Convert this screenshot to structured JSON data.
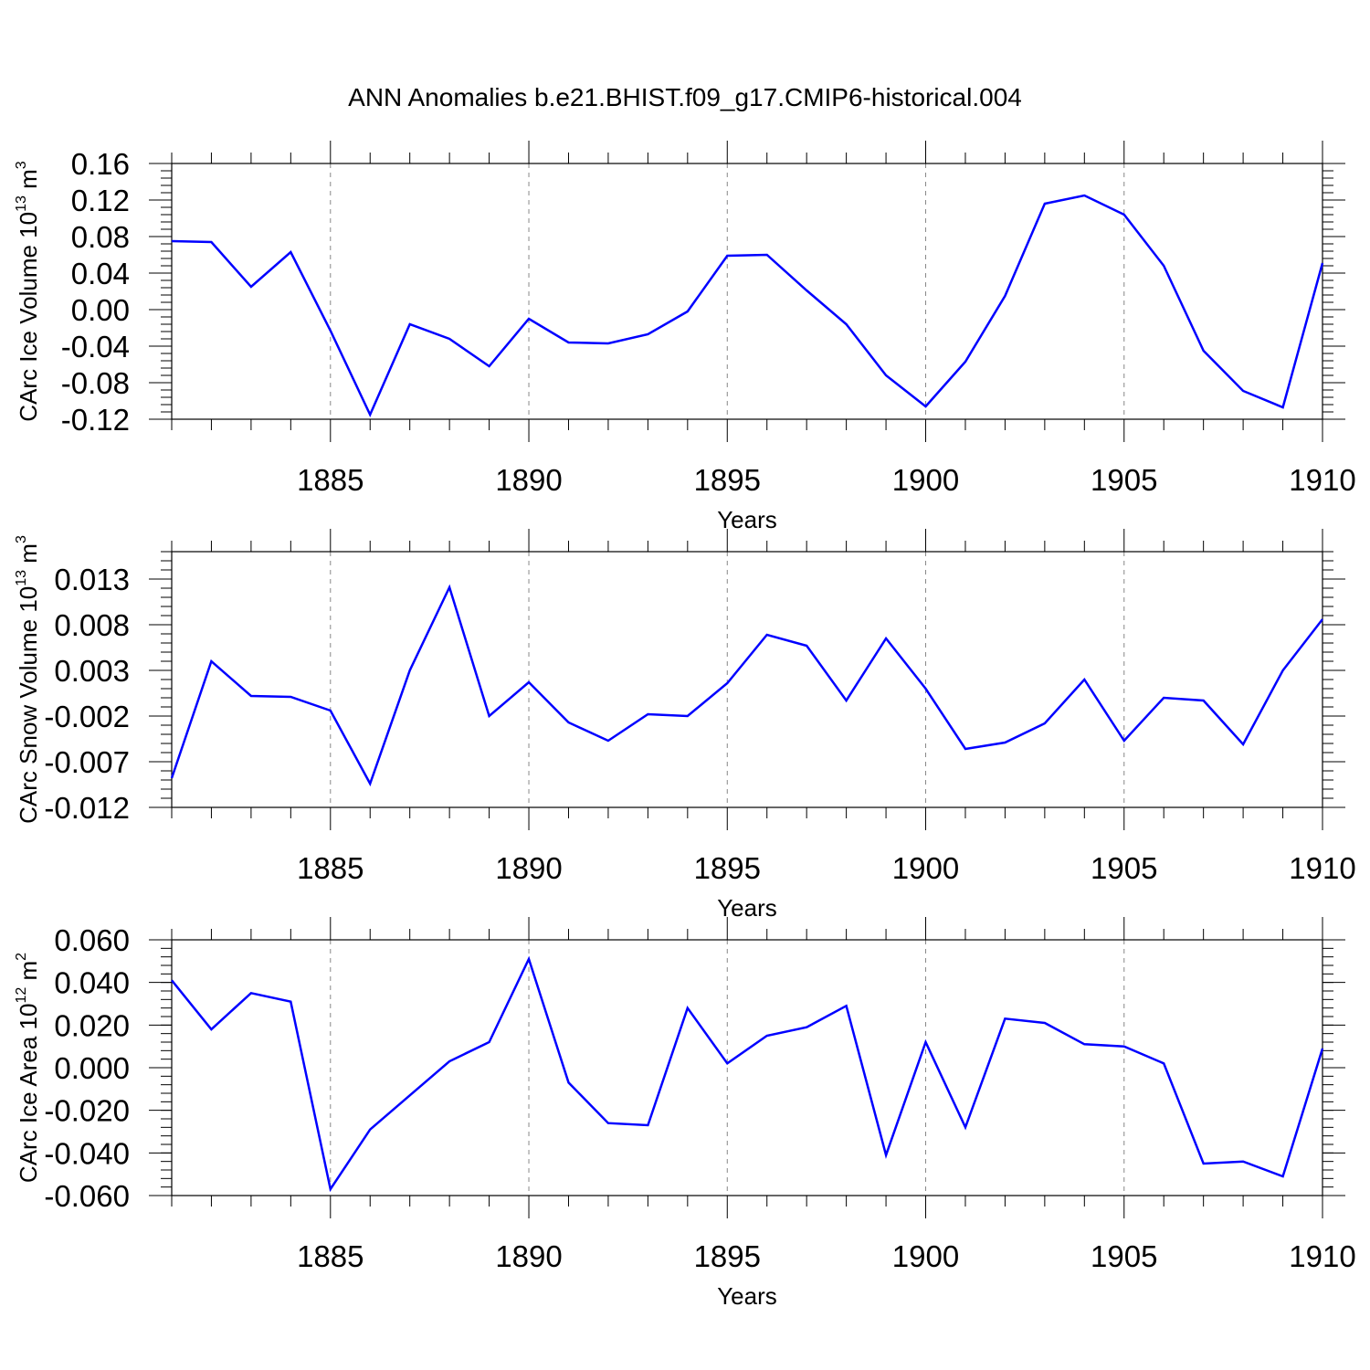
{
  "title": "ANN Anomalies b.e21.BHIST.f09_g17.CMIP6-historical.004",
  "line_color": "#0000ff",
  "chart_data": [
    {
      "type": "line",
      "ylabel": {
        "main": "CArc Ice Volume 10",
        "exp": "13",
        "unit": " m",
        "unit_exp": "3"
      },
      "xlabel": "Years",
      "xlim": [
        1881,
        1910
      ],
      "ylim": [
        -0.12,
        0.16
      ],
      "ytick_step": 0.04,
      "ytick_decimals": 2,
      "xticks": [
        1885,
        1890,
        1895,
        1900,
        1905,
        1910
      ],
      "grid": "vertical dashed at major x ticks",
      "series": [
        {
          "x": [
            1881,
            1882,
            1883,
            1884,
            1885,
            1886,
            1887,
            1888,
            1889,
            1890,
            1891,
            1892,
            1893,
            1894,
            1895,
            1896,
            1897,
            1898,
            1899,
            1900,
            1901,
            1902,
            1903,
            1904,
            1905,
            1906,
            1907,
            1908,
            1909,
            1910
          ],
          "values": [
            0.075,
            0.074,
            0.025,
            0.063,
            -0.023,
            -0.115,
            -0.016,
            -0.032,
            -0.062,
            -0.01,
            -0.036,
            -0.037,
            -0.027,
            -0.002,
            0.059,
            0.06,
            0.021,
            -0.016,
            -0.072,
            -0.106,
            -0.057,
            0.015,
            0.116,
            0.125,
            0.104,
            0.048,
            -0.045,
            -0.089,
            -0.107,
            0.051
          ]
        }
      ]
    },
    {
      "type": "line",
      "ylabel": {
        "main": "CArc Snow Volume 10",
        "exp": "13",
        "unit": " m",
        "unit_exp": "3"
      },
      "xlabel": "Years",
      "xlim": [
        1881,
        1910
      ],
      "ylim": [
        -0.012,
        0.016
      ],
      "ytick_step": 0.005,
      "ytick_decimals": 3,
      "xticks": [
        1885,
        1890,
        1895,
        1900,
        1905,
        1910
      ],
      "grid": "vertical dashed at major x ticks",
      "series": [
        {
          "x": [
            1881,
            1882,
            1883,
            1884,
            1885,
            1886,
            1887,
            1888,
            1889,
            1890,
            1891,
            1892,
            1893,
            1894,
            1895,
            1896,
            1897,
            1898,
            1899,
            1900,
            1901,
            1902,
            1903,
            1904,
            1905,
            1906,
            1907,
            1908,
            1909,
            1910
          ],
          "values": [
            -0.0088,
            0.004,
            0.0002,
            0.0001,
            -0.0014,
            -0.0094,
            0.003,
            0.0121,
            -0.002,
            0.0017,
            -0.0027,
            -0.0047,
            -0.0018,
            -0.002,
            0.0016,
            0.0069,
            0.0057,
            -0.0003,
            0.0065,
            0.001,
            -0.0056,
            -0.0049,
            -0.0028,
            0.002,
            -0.0047,
            0.0,
            -0.0003,
            -0.0051,
            0.003,
            0.0086
          ]
        }
      ]
    },
    {
      "type": "line",
      "ylabel": {
        "main": "CArc Ice Area 10",
        "exp": "12",
        "unit": " m",
        "unit_exp": "2"
      },
      "xlabel": "Years",
      "xlim": [
        1881,
        1910
      ],
      "ylim": [
        -0.06,
        0.06
      ],
      "ytick_step": 0.02,
      "ytick_decimals": 3,
      "xticks": [
        1885,
        1890,
        1895,
        1900,
        1905,
        1910
      ],
      "grid": "vertical dashed at major x ticks",
      "series": [
        {
          "x": [
            1881,
            1882,
            1883,
            1884,
            1885,
            1886,
            1887,
            1888,
            1889,
            1890,
            1891,
            1892,
            1893,
            1894,
            1895,
            1896,
            1897,
            1898,
            1899,
            1900,
            1901,
            1902,
            1903,
            1904,
            1905,
            1906,
            1907,
            1908,
            1909,
            1910
          ],
          "values": [
            0.041,
            0.018,
            0.035,
            0.031,
            -0.057,
            -0.029,
            -0.013,
            0.003,
            0.012,
            0.051,
            -0.007,
            -0.026,
            -0.027,
            0.028,
            0.002,
            0.015,
            0.019,
            0.029,
            -0.041,
            0.012,
            -0.028,
            0.023,
            0.021,
            0.011,
            0.01,
            0.002,
            -0.045,
            -0.044,
            -0.051,
            0.009
          ]
        }
      ]
    }
  ]
}
